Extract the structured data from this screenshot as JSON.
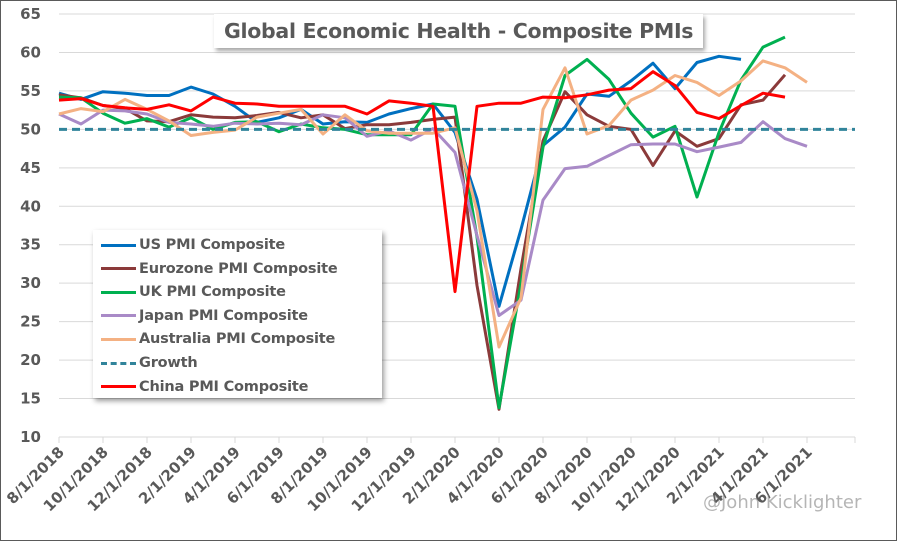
{
  "chart_data": {
    "type": "line",
    "title": "Global Economic Health - Composite PMIs",
    "xlabel": "",
    "ylabel": "",
    "ylim": [
      10,
      65
    ],
    "yticks": [
      10,
      15,
      20,
      25,
      30,
      35,
      40,
      45,
      50,
      55,
      60,
      65
    ],
    "grid": true,
    "legend_position": "left-middle",
    "x": [
      "8/1/2018",
      "9/1/2018",
      "10/1/2018",
      "11/1/2018",
      "12/1/2018",
      "1/1/2019",
      "2/1/2019",
      "3/1/2019",
      "4/1/2019",
      "5/1/2019",
      "6/1/2019",
      "7/1/2019",
      "8/1/2019",
      "9/1/2019",
      "10/1/2019",
      "11/1/2019",
      "12/1/2019",
      "1/1/2020",
      "2/1/2020",
      "3/1/2020",
      "4/1/2020",
      "5/1/2020",
      "6/1/2020",
      "7/1/2020",
      "8/1/2020",
      "9/1/2020",
      "10/1/2020",
      "11/1/2020",
      "12/1/2020",
      "1/1/2021",
      "2/1/2021",
      "3/1/2021",
      "4/1/2021",
      "5/1/2021",
      "6/1/2021",
      "7/1/2021"
    ],
    "xtick_labels": [
      "8/1/2018",
      "10/1/2018",
      "12/1/2018",
      "2/1/2019",
      "4/1/2019",
      "6/1/2019",
      "8/1/2019",
      "10/1/2019",
      "12/1/2019",
      "2/1/2020",
      "4/1/2020",
      "6/1/2020",
      "8/1/2020",
      "10/1/2020",
      "12/1/2020",
      "2/1/2021",
      "4/1/2021",
      "6/1/2021"
    ],
    "series": [
      {
        "name": "US PMI Composite",
        "color": "#0070c0",
        "dashed": false,
        "values": [
          54.7,
          53.9,
          54.9,
          54.7,
          54.4,
          54.4,
          55.5,
          54.6,
          53.0,
          50.9,
          51.5,
          52.6,
          50.7,
          51.0,
          50.9,
          52.0,
          52.7,
          53.3,
          49.6,
          40.9,
          27.0,
          37.0,
          47.9,
          50.3,
          54.6,
          54.3,
          56.3,
          58.6,
          55.3,
          58.7,
          59.5,
          59.1,
          null,
          null,
          null,
          null
        ]
      },
      {
        "name": "Eurozone PMI Composite",
        "color": "#8b3a3a",
        "dashed": false,
        "values": [
          54.5,
          54.1,
          53.1,
          52.7,
          51.1,
          51.0,
          51.9,
          51.6,
          51.5,
          51.8,
          52.2,
          51.5,
          51.9,
          50.1,
          50.6,
          50.6,
          50.9,
          51.3,
          51.6,
          29.7,
          13.6,
          31.9,
          48.5,
          54.9,
          51.9,
          50.4,
          50.0,
          45.3,
          49.8,
          47.8,
          48.8,
          53.2,
          53.8,
          57.1,
          null,
          null
        ]
      },
      {
        "name": "UK PMI Composite",
        "color": "#00b050",
        "dashed": false,
        "values": [
          54.2,
          54.1,
          52.1,
          50.8,
          51.4,
          50.3,
          51.5,
          50.0,
          50.9,
          51.0,
          49.7,
          50.7,
          50.2,
          50.0,
          49.3,
          49.3,
          49.3,
          53.3,
          53.0,
          36.0,
          13.8,
          30.0,
          47.7,
          57.0,
          59.1,
          56.5,
          52.1,
          49.0,
          50.4,
          41.2,
          49.6,
          56.4,
          60.7,
          62.0,
          null,
          null
        ]
      },
      {
        "name": "Japan PMI Composite",
        "color": "#a98ac7",
        "dashed": false,
        "values": [
          52.0,
          50.7,
          52.5,
          52.4,
          52.0,
          50.9,
          50.7,
          50.4,
          50.8,
          50.7,
          50.8,
          50.6,
          51.9,
          51.5,
          49.1,
          49.8,
          48.6,
          50.1,
          47.0,
          36.2,
          25.8,
          27.8,
          40.8,
          44.9,
          45.2,
          46.6,
          48.0,
          48.1,
          48.1,
          47.1,
          47.7,
          48.3,
          51.0,
          48.8,
          47.8,
          null
        ]
      },
      {
        "name": "Australia PMI Composite",
        "color": "#f4b183",
        "dashed": false,
        "values": [
          52.0,
          52.7,
          52.3,
          53.9,
          52.6,
          51.1,
          49.2,
          49.6,
          49.9,
          51.6,
          52.1,
          52.6,
          49.4,
          51.9,
          49.8,
          49.5,
          49.5,
          49.5,
          50.2,
          39.4,
          21.7,
          28.1,
          52.6,
          58.0,
          49.4,
          50.5,
          53.8,
          55.1,
          57.0,
          56.1,
          54.4,
          56.3,
          58.9,
          58.0,
          56.1,
          null
        ]
      },
      {
        "name": "Growth",
        "color": "#31849b",
        "dashed": true,
        "values": [
          50,
          50,
          50,
          50,
          50,
          50,
          50,
          50,
          50,
          50,
          50,
          50,
          50,
          50,
          50,
          50,
          50,
          50,
          50,
          50,
          50,
          50,
          50,
          50,
          50,
          50,
          50,
          50,
          50,
          50,
          50,
          50,
          50,
          50,
          50,
          50
        ]
      },
      {
        "name": "China PMI Composite",
        "color": "#ff0000",
        "dashed": false,
        "values": [
          53.8,
          54.0,
          53.1,
          52.8,
          52.6,
          53.2,
          52.4,
          54.2,
          53.4,
          53.3,
          53.0,
          53.0,
          53.0,
          53.0,
          52.0,
          53.7,
          53.4,
          53.0,
          28.9,
          53.0,
          53.4,
          53.4,
          54.2,
          54.1,
          54.5,
          55.1,
          55.3,
          57.5,
          55.7,
          52.2,
          51.4,
          53.1,
          54.7,
          54.2,
          null,
          null
        ]
      }
    ]
  },
  "watermark": "@John Kicklighter"
}
